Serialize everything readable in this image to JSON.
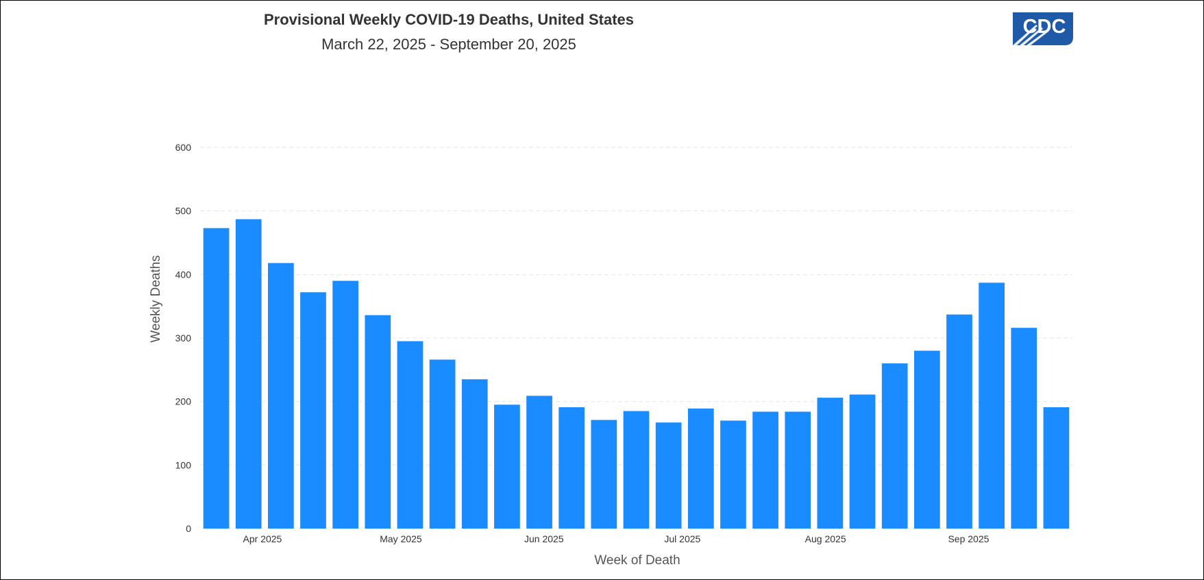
{
  "colors": {
    "bar": "#1a8cff",
    "grid": "#e6e6e6",
    "logo_blue": "#1f5aa8"
  },
  "logo": {
    "text": "CDC",
    "icon": "cdc-logo"
  },
  "chart_data": {
    "type": "bar",
    "title": "Provisional Weekly COVID-19 Deaths, United States",
    "subtitle": "March 22, 2025 - September 20, 2025",
    "xlabel": "Week of Death",
    "ylabel": "Weekly Deaths",
    "ylim": [
      0,
      600
    ],
    "yticks": [
      0,
      100,
      200,
      300,
      400,
      500,
      600
    ],
    "grid": "horizontal dashed",
    "x": [
      "2025-03-22",
      "2025-03-29",
      "2025-04-05",
      "2025-04-12",
      "2025-04-19",
      "2025-04-26",
      "2025-05-03",
      "2025-05-10",
      "2025-05-17",
      "2025-05-24",
      "2025-05-31",
      "2025-06-07",
      "2025-06-14",
      "2025-06-21",
      "2025-06-28",
      "2025-07-05",
      "2025-07-12",
      "2025-07-19",
      "2025-07-26",
      "2025-08-02",
      "2025-08-09",
      "2025-08-16",
      "2025-08-23",
      "2025-08-30",
      "2025-09-06",
      "2025-09-13",
      "2025-09-20"
    ],
    "values": [
      473,
      487,
      418,
      372,
      390,
      336,
      295,
      266,
      235,
      195,
      209,
      191,
      171,
      185,
      167,
      189,
      170,
      184,
      184,
      206,
      211,
      260,
      280,
      337,
      387,
      316,
      191
    ],
    "xtick_labels": [
      {
        "label": "Apr 2025",
        "date": "2025-04-01"
      },
      {
        "label": "May 2025",
        "date": "2025-05-01"
      },
      {
        "label": "Jun 2025",
        "date": "2025-06-01"
      },
      {
        "label": "Jul 2025",
        "date": "2025-07-01"
      },
      {
        "label": "Aug 2025",
        "date": "2025-08-01"
      },
      {
        "label": "Sep 2025",
        "date": "2025-09-01"
      }
    ]
  }
}
